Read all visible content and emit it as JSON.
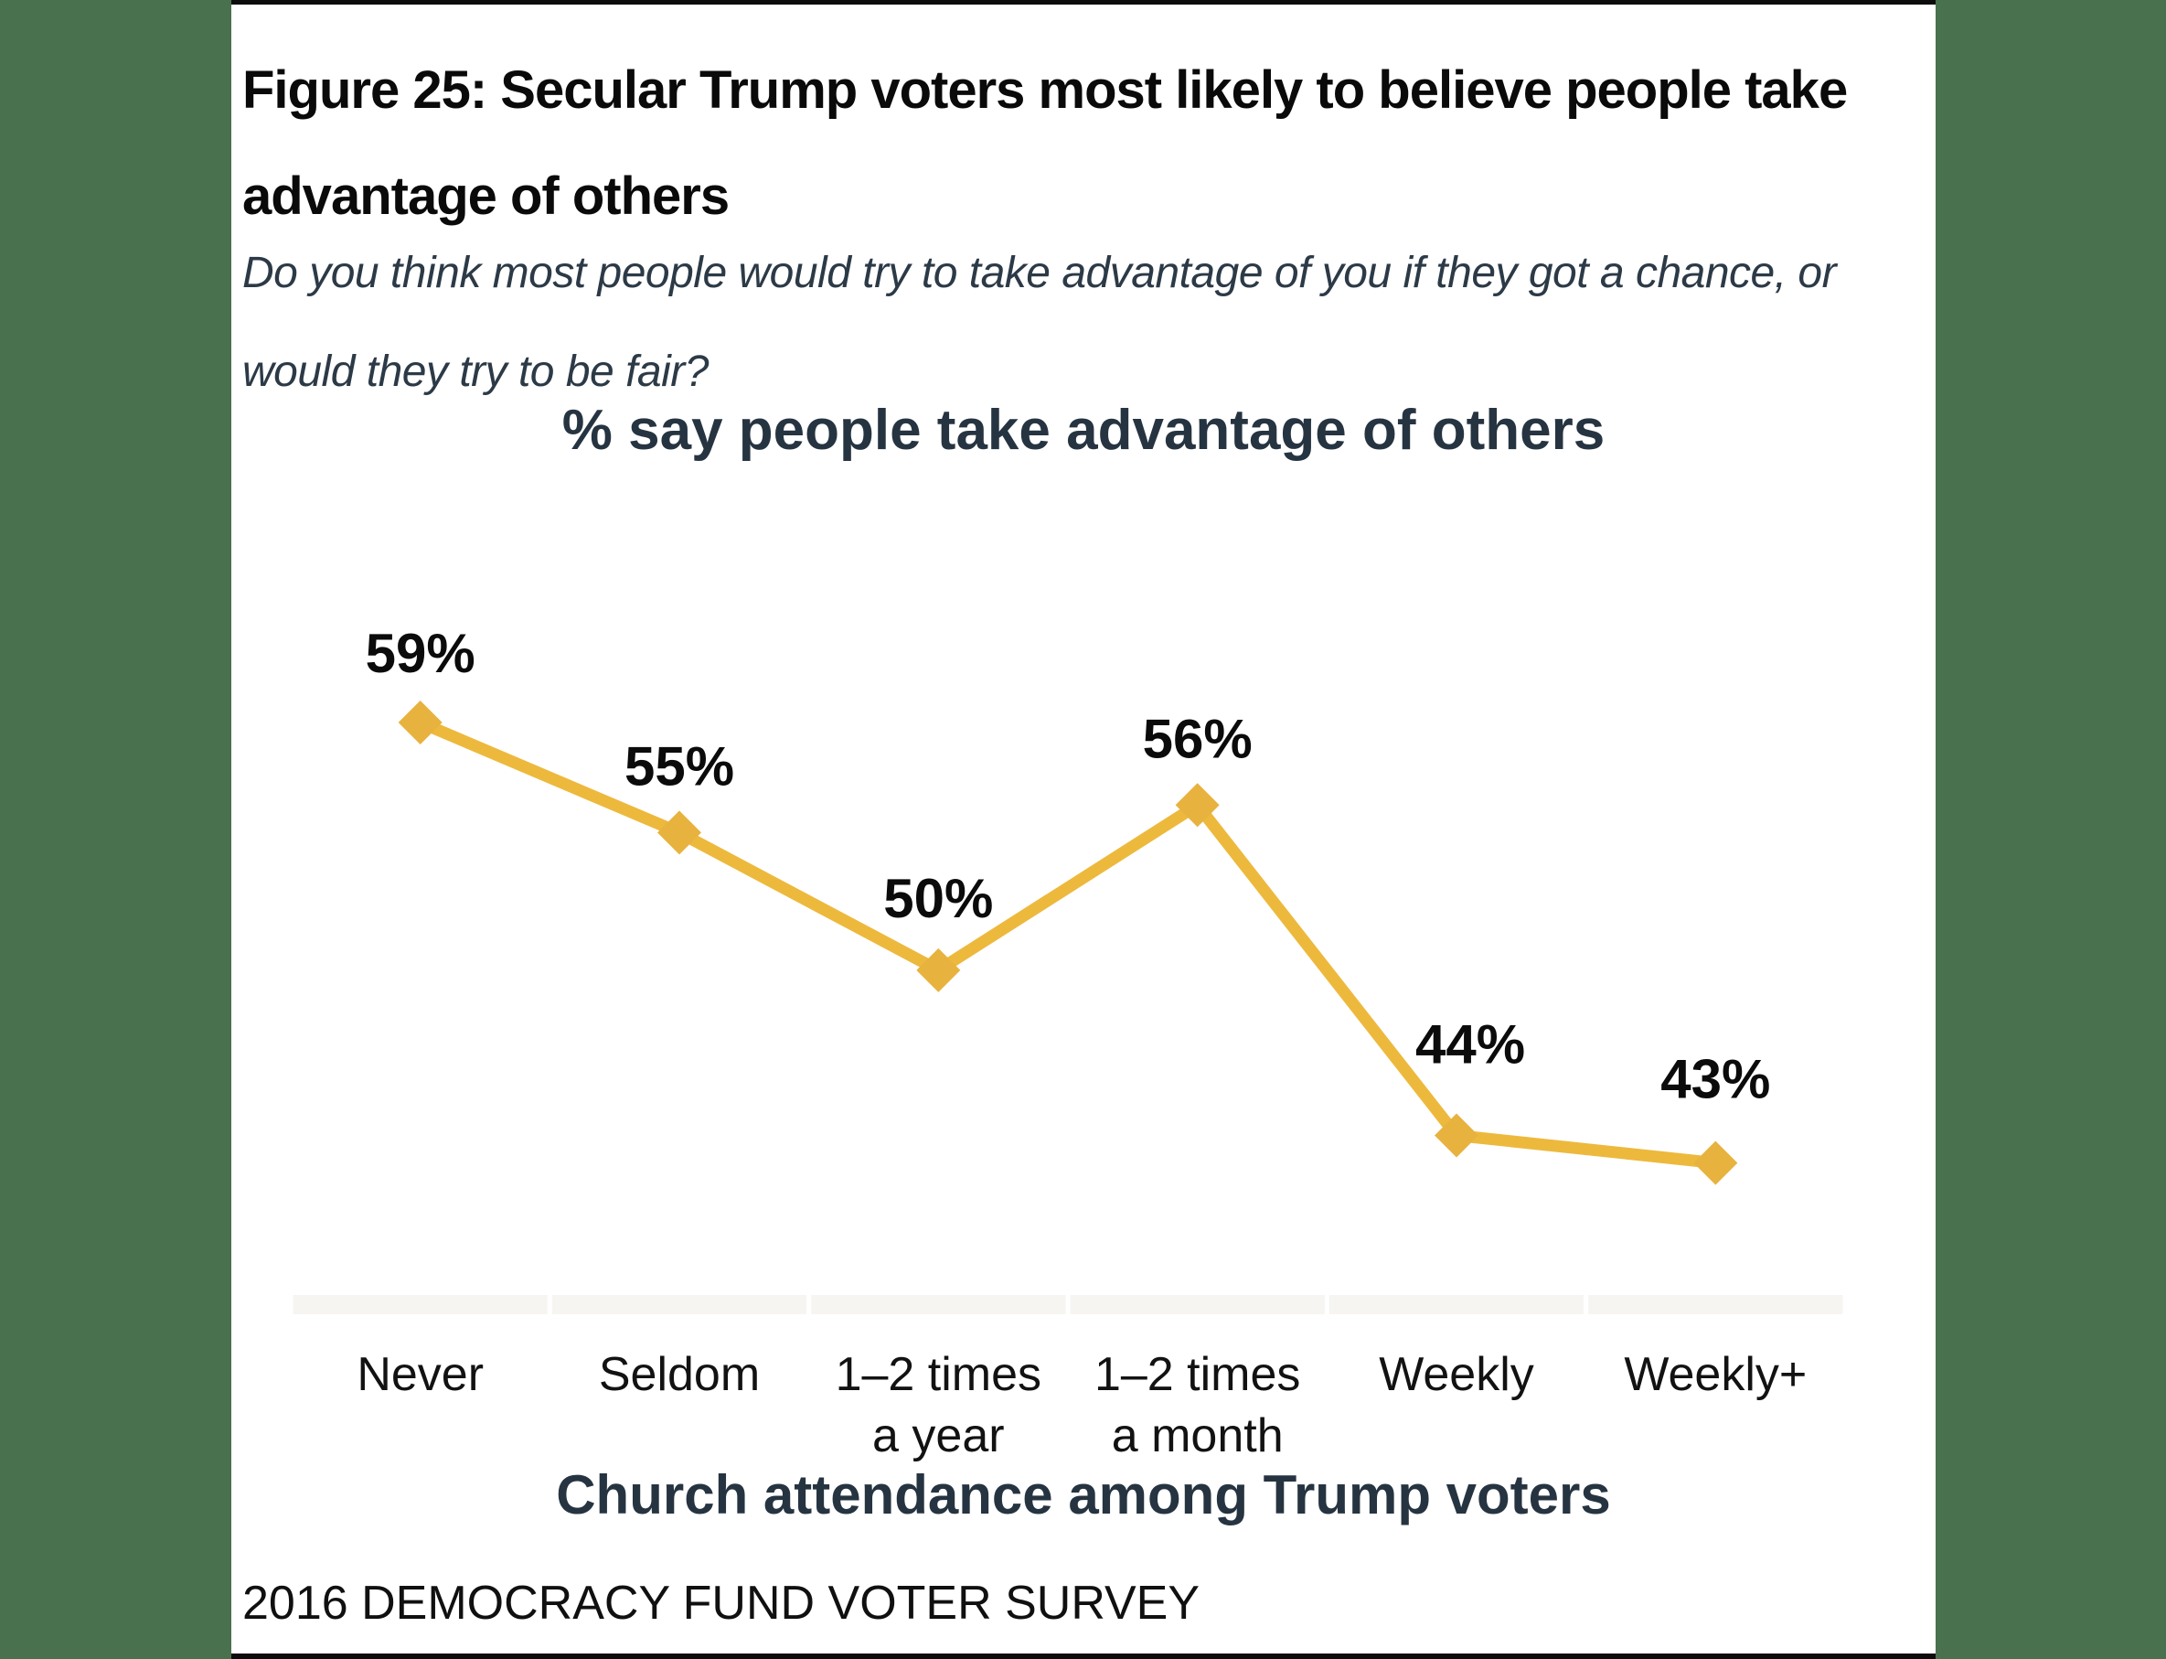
{
  "window": {
    "background_color": "#49714E",
    "card_background": "#FFFFFF",
    "card_border_color": "#0C0C0C"
  },
  "header": {
    "figure_title": "Figure 25: Secular Trump voters most likely to believe people take advantage of others",
    "question": "Do you think most people would try to take advantage of you if they got a chance, or would they try to be fair?"
  },
  "footer": {
    "source": "2016 DEMOCRACY FUND VOTER SURVEY"
  },
  "chart_data": {
    "type": "line",
    "title": "% say people take advantage of others",
    "xlabel": "Church attendance among Trump voters",
    "ylabel": "",
    "categories": [
      "Never",
      "Seldom",
      "1–2 times\na year",
      "1–2 times\na month",
      "Weekly",
      "Weekly+"
    ],
    "values": [
      59,
      55,
      50,
      56,
      44,
      43
    ],
    "data_label_format": "{v}%",
    "ylim": [
      38,
      62
    ],
    "grid": false,
    "legend": false,
    "marker_shape": "diamond",
    "colors": {
      "line": "#EDB93D",
      "marker": "#E8B23E",
      "value_label": "#0B0B0B",
      "tick_label": "#121212",
      "axis_band": "#F7F5F2",
      "titles": "#263441"
    }
  }
}
